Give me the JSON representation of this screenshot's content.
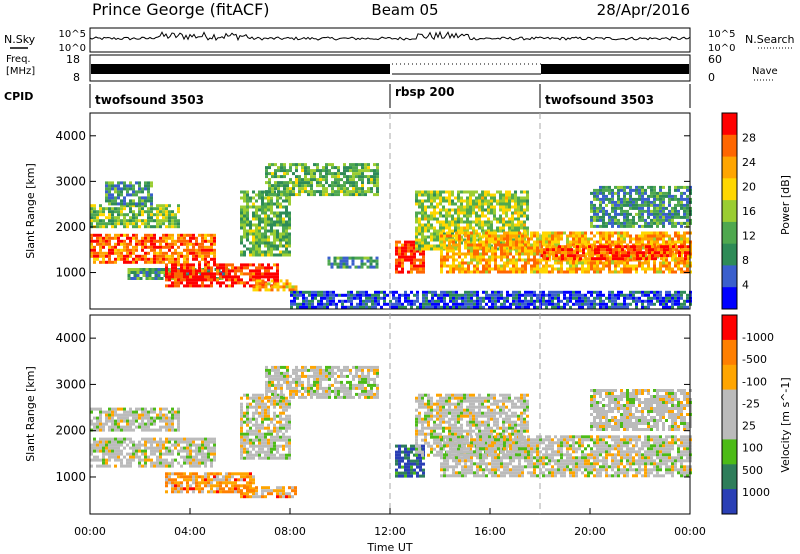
{
  "header": {
    "station": "Prince George (fitACF)",
    "beam": "Beam 05",
    "date": "28/Apr/2016"
  },
  "noise_panel": {
    "left_label": "N.Sky",
    "right_label": "N.Search",
    "left_ticks": [
      "10^5",
      "10^0"
    ],
    "right_ticks": [
      "10^5",
      "10^0"
    ]
  },
  "freq_panel": {
    "left_label_line1": "Freq.",
    "left_label_line2": "[MHz]",
    "right_label": "Nave",
    "left_ticks": [
      "18",
      "8"
    ],
    "right_ticks": [
      "60",
      "0"
    ]
  },
  "cpid": {
    "label": "CPID",
    "segments": [
      {
        "name": "twofsound 3503",
        "start_h": 0,
        "end_h": 12
      },
      {
        "name": "rbsp 200",
        "start_h": 12,
        "end_h": 18
      },
      {
        "name": "twofsound 3503",
        "start_h": 18,
        "end_h": 24
      }
    ]
  },
  "time_axis": {
    "label": "Time UT",
    "ticks": [
      "00:00",
      "04:00",
      "08:00",
      "12:00",
      "16:00",
      "20:00",
      "00:00"
    ]
  },
  "chart_data": [
    {
      "type": "heatmap",
      "panel": "power",
      "ylabel": "Slant Range [km]",
      "yticks": [
        "1000",
        "2000",
        "3000",
        "4000"
      ],
      "ylim": [
        200,
        4500
      ],
      "xlim": [
        0,
        24
      ],
      "colorbar_label": "Power [dB]",
      "colorbar_ticks": [
        "4",
        "8",
        "12",
        "16",
        "20",
        "24",
        "28"
      ],
      "colors": [
        "#0000ff",
        "#3a5fcd",
        "#2e8b57",
        "#4fa84f",
        "#9acd32",
        "#ffd700",
        "#ffa500",
        "#ff6600",
        "#ff0000"
      ],
      "regions": [
        {
          "t0": 0.0,
          "t1": 5.0,
          "r0": 1250,
          "r1": 1850,
          "level": 0.82
        },
        {
          "t0": 0.0,
          "t1": 3.5,
          "r0": 2000,
          "r1": 2500,
          "level": 0.45
        },
        {
          "t0": 0.6,
          "t1": 2.5,
          "r0": 2500,
          "r1": 3000,
          "level": 0.3
        },
        {
          "t0": 1.5,
          "t1": 5.5,
          "r0": 900,
          "r1": 1100,
          "level": 0.35
        },
        {
          "t0": 3.0,
          "t1": 7.5,
          "r0": 700,
          "r1": 1200,
          "level": 0.92
        },
        {
          "t0": 6.5,
          "t1": 8.2,
          "r0": 600,
          "r1": 850,
          "level": 0.7
        },
        {
          "t0": 6.0,
          "t1": 8.0,
          "r0": 1400,
          "r1": 2800,
          "level": 0.4
        },
        {
          "t0": 7.0,
          "t1": 11.5,
          "r0": 2700,
          "r1": 3400,
          "level": 0.4
        },
        {
          "t0": 9.5,
          "t1": 11.5,
          "r0": 1100,
          "r1": 1350,
          "level": 0.3
        },
        {
          "t0": 12.2,
          "t1": 13.3,
          "r0": 1000,
          "r1": 1700,
          "level": 0.9
        },
        {
          "t0": 13.0,
          "t1": 17.5,
          "r0": 1500,
          "r1": 2800,
          "level": 0.5
        },
        {
          "t0": 14.0,
          "t1": 24.0,
          "r0": 1000,
          "r1": 1900,
          "level": 0.7
        },
        {
          "t0": 18.0,
          "t1": 24.0,
          "r0": 1300,
          "r1": 1600,
          "level": 0.88
        },
        {
          "t0": 20.0,
          "t1": 24.0,
          "r0": 2000,
          "r1": 2900,
          "level": 0.3
        },
        {
          "t0": 8.0,
          "t1": 24.0,
          "r0": 250,
          "r1": 600,
          "level": 0.15
        }
      ]
    },
    {
      "type": "heatmap",
      "panel": "velocity",
      "ylabel": "Slant Range [km]",
      "yticks": [
        "1000",
        "2000",
        "3000",
        "4000"
      ],
      "ylim": [
        200,
        4500
      ],
      "xlim": [
        0,
        24
      ],
      "colorbar_label": "Velocity [m s^-1]",
      "colorbar_ticks": [
        "1000",
        "500",
        "100",
        "25",
        "-25",
        "-100",
        "-500",
        "-1000"
      ],
      "colors": [
        "#2a3fb5",
        "#2e7d5a",
        "#4cbb17",
        "#bbbbbb",
        "#bbbbbb",
        "#ffa500",
        "#ff7f00",
        "#ff0000"
      ],
      "regions": [
        {
          "t0": 0.0,
          "t1": 5.0,
          "r0": 1250,
          "r1": 1850,
          "level": 0.5
        },
        {
          "t0": 0.0,
          "t1": 3.5,
          "r0": 2000,
          "r1": 2500,
          "level": 0.5
        },
        {
          "t0": 3.0,
          "t1": 6.5,
          "r0": 700,
          "r1": 1100,
          "level": 0.72
        },
        {
          "t0": 6.0,
          "t1": 8.2,
          "r0": 600,
          "r1": 800,
          "level": 0.72
        },
        {
          "t0": 6.0,
          "t1": 8.0,
          "r0": 1400,
          "r1": 2800,
          "level": 0.5
        },
        {
          "t0": 7.0,
          "t1": 11.5,
          "r0": 2700,
          "r1": 3400,
          "level": 0.5
        },
        {
          "t0": 12.2,
          "t1": 13.3,
          "r0": 1000,
          "r1": 1700,
          "level": 0.1
        },
        {
          "t0": 13.0,
          "t1": 17.5,
          "r0": 1500,
          "r1": 2800,
          "level": 0.5
        },
        {
          "t0": 14.0,
          "t1": 24.0,
          "r0": 1000,
          "r1": 1900,
          "level": 0.5
        },
        {
          "t0": 20.0,
          "t1": 24.0,
          "r0": 2000,
          "r1": 2900,
          "level": 0.5
        }
      ]
    }
  ]
}
